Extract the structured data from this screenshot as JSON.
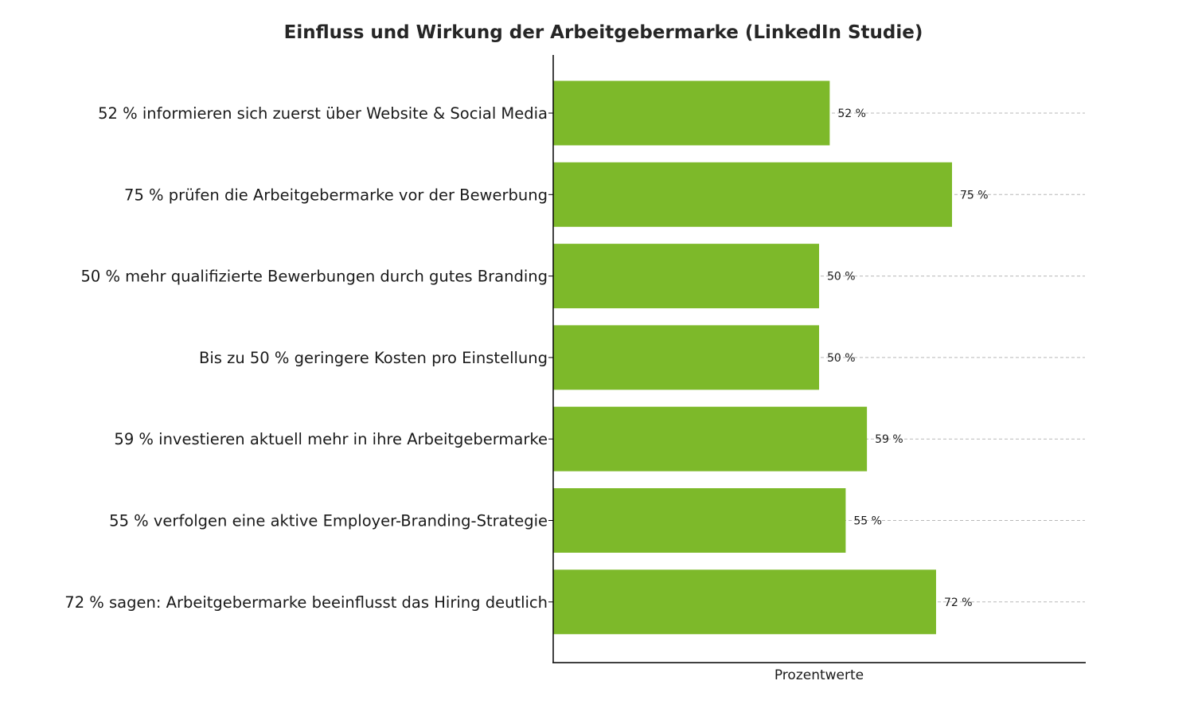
{
  "chart_data": {
    "type": "bar",
    "orientation": "horizontal",
    "title": "Einfluss und Wirkung der Arbeitgebermarke (LinkedIn Studie)",
    "xlabel": "Prozentwerte",
    "ylabel": "",
    "xlim": [
      0,
      100
    ],
    "grid": "horizontal dashed lines at each category",
    "categories": [
      "52 % informieren sich zuerst über Website & Social Media",
      "75 % prüfen die Arbeitgebermarke vor der Bewerbung",
      "50 % mehr qualifizierte Bewerbungen durch gutes Branding",
      "Bis zu 50 % geringere Kosten pro Einstellung",
      "59 % investieren aktuell mehr in ihre Arbeitgebermarke",
      "55 % verfolgen eine aktive Employer-Branding-Strategie",
      "72 % sagen: Arbeitgebermarke beeinflusst das Hiring deutlich"
    ],
    "values": [
      52,
      75,
      50,
      50,
      59,
      55,
      72
    ],
    "value_labels": [
      "52 %",
      "75 %",
      "50 %",
      "50 %",
      "59 %",
      "55 %",
      "72 %"
    ],
    "bar_color": "#7db92a"
  }
}
